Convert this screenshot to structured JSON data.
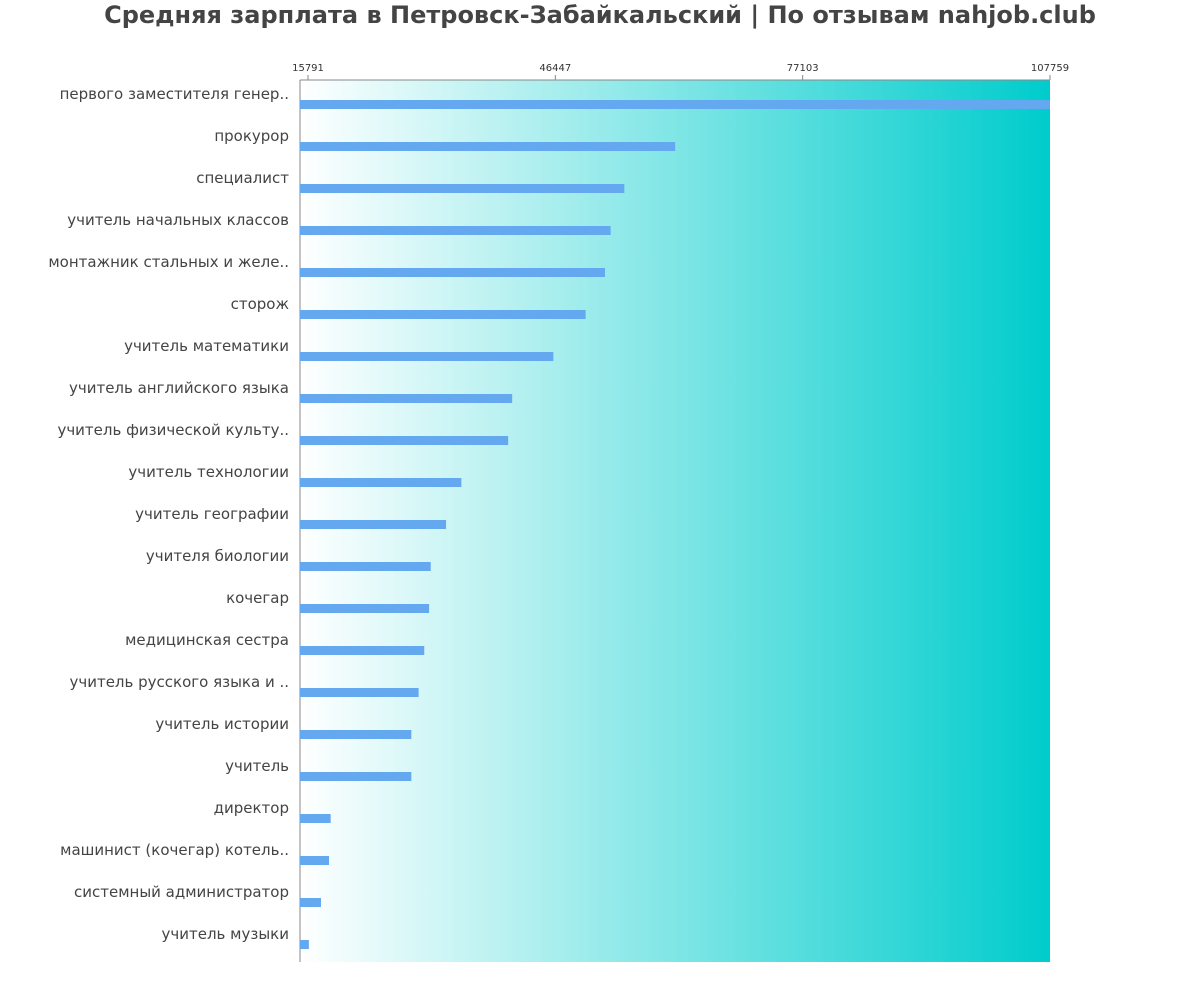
{
  "chart_data": {
    "type": "bar",
    "orientation": "horizontal",
    "title": "Средняя зарплата в Петровск-Забайкальский | По отзывам nahjob.club",
    "xticks": [
      15791,
      46447,
      77103,
      107759
    ],
    "xlim": [
      14800,
      107759
    ],
    "bar_color": "#64a8f0",
    "background_gradient": [
      "#ffffff",
      "#00cccc"
    ],
    "categories": [
      "первого заместителя генер..",
      "прокурор",
      "специалист",
      "учитель начальных классов",
      "монтажник стальных и желе..",
      "сторож",
      "учитель математики",
      "учитель английского языка",
      "учитель физической культу..",
      "учитель технологии",
      "учитель географии",
      "учителя биологии",
      "кочегар",
      "медицинская сестра",
      "учитель русского языка и ..",
      "учитель истории",
      "учитель",
      "директор",
      "машинист (кочегар) котель..",
      "системный администратор",
      "учитель музыки"
    ],
    "values": [
      107759,
      61300,
      55000,
      53300,
      52600,
      50200,
      46200,
      41100,
      40600,
      34800,
      32900,
      31000,
      30800,
      30200,
      29500,
      28600,
      28600,
      18600,
      18400,
      17400,
      15900
    ]
  }
}
